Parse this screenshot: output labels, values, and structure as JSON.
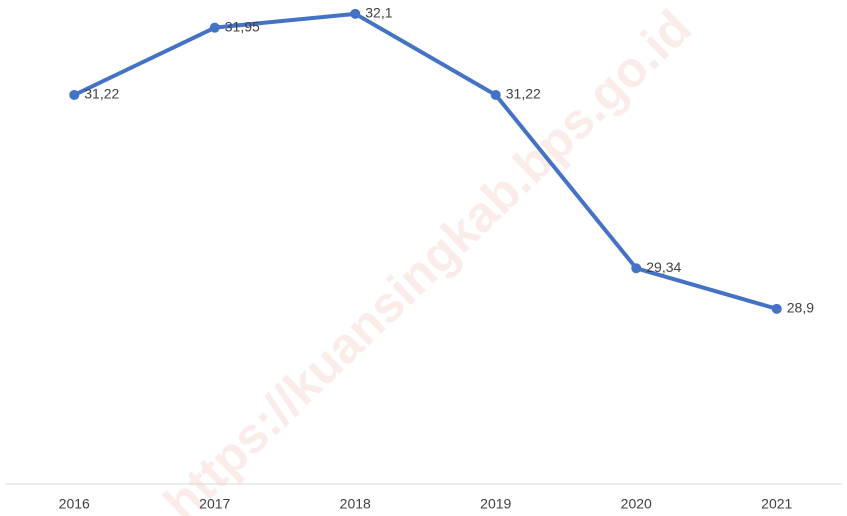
{
  "chart_data": {
    "type": "line",
    "categories": [
      "2016",
      "2017",
      "2018",
      "2019",
      "2020",
      "2021"
    ],
    "series": [
      {
        "color": "#4472c4",
        "values": [
          31.22,
          31.95,
          32.1,
          31.22,
          29.34,
          28.9
        ],
        "value_labels": [
          "31,22",
          "31,95",
          "32,1",
          "31,22",
          "29,34",
          "28,9"
        ]
      }
    ],
    "ylim": [
      27,
      32.25
    ],
    "watermark": "https://kuansingkab.bps.go.id"
  }
}
